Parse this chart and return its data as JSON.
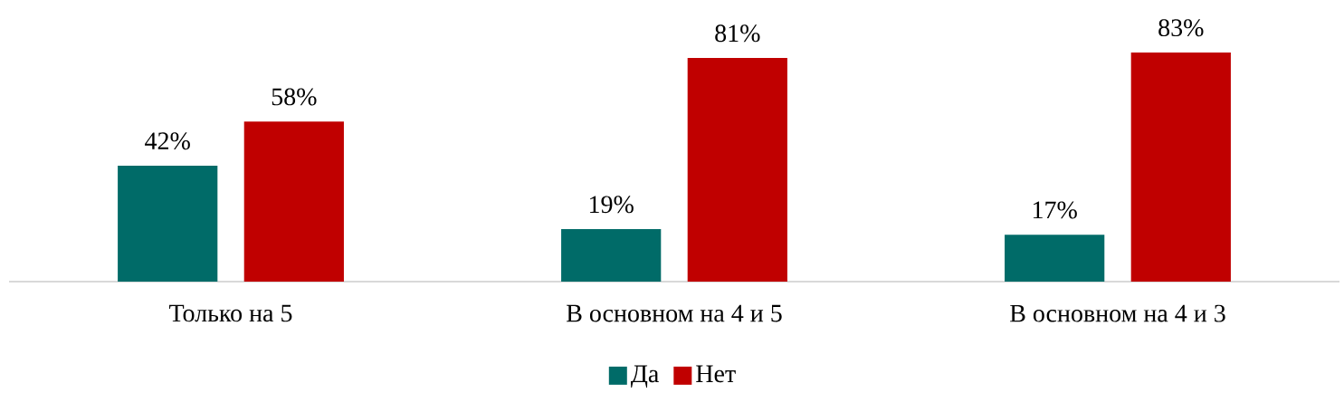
{
  "chart_data": {
    "type": "bar",
    "categories": [
      "Только на 5",
      "В основном на 4 и 5",
      "В основном на 4 и 3"
    ],
    "series": [
      {
        "name": "Да",
        "color": "#006b68",
        "values": [
          42,
          19,
          17
        ],
        "value_labels": [
          "42%",
          "19%",
          "17%"
        ]
      },
      {
        "name": "Нет",
        "color": "#c00000",
        "values": [
          58,
          81,
          83
        ],
        "value_labels": [
          "58%",
          "81%",
          "83%"
        ]
      }
    ],
    "legend": "bottom"
  }
}
